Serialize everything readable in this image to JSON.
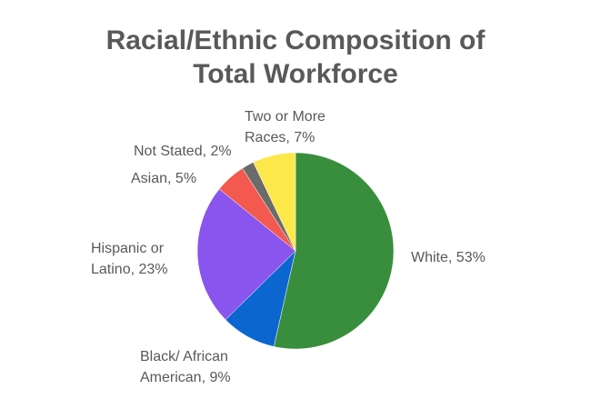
{
  "chart_data": {
    "type": "pie",
    "title": [
      "Racial/Ethnic Composition of",
      "Total Workforce"
    ],
    "start_angle_deg": 0,
    "direction": "clockwise",
    "slices": [
      {
        "name": "White",
        "value": 53,
        "color": "#388e3c",
        "label": [
          "White, 53%"
        ]
      },
      {
        "name": "Black/ African American",
        "value": 9,
        "color": "#0b66d0",
        "label": [
          "Black/ African",
          "American, 9%"
        ]
      },
      {
        "name": "Hispanic or Latino",
        "value": 23,
        "color": "#8a54ee",
        "label": [
          "Hispanic or",
          "Latino, 23%"
        ]
      },
      {
        "name": "Asian",
        "value": 5,
        "color": "#f4594f",
        "label": [
          "Asian, 5%"
        ]
      },
      {
        "name": "Not Stated",
        "value": 2,
        "color": "#6b6b6b",
        "label": [
          "Not Stated, 2%"
        ]
      },
      {
        "name": "Two or More Races",
        "value": 7,
        "color": "#fde84a",
        "label": [
          "Two or More",
          "Races, 7%"
        ]
      }
    ],
    "legend": "none"
  }
}
